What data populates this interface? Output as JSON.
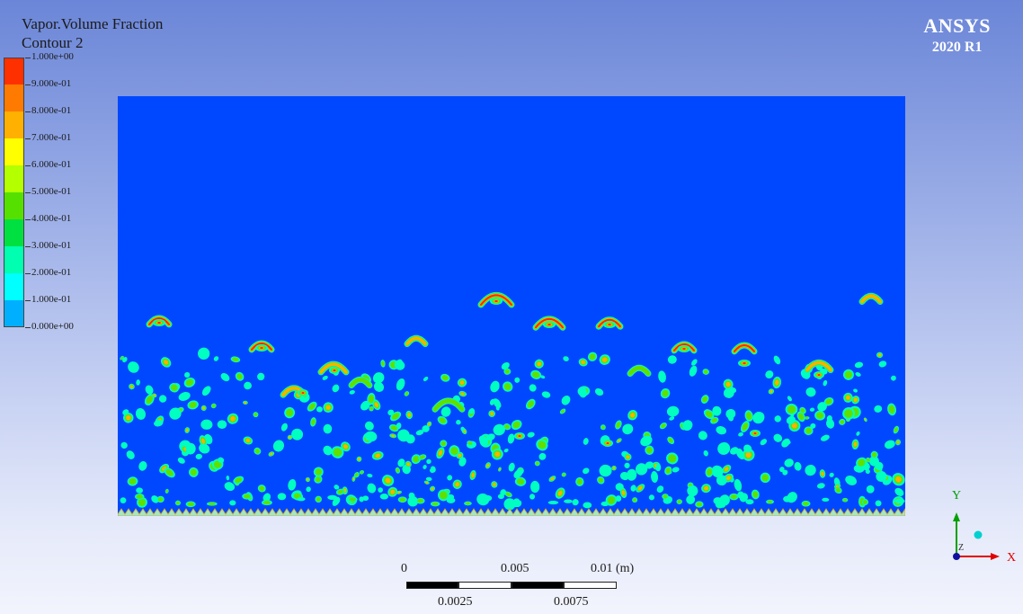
{
  "legend": {
    "title": "Vapor.Volume Fraction",
    "subtitle": "Contour 2",
    "labels": [
      "1.000e+00",
      "9.000e-01",
      "8.000e-01",
      "7.000e-01",
      "6.000e-01",
      "5.000e-01",
      "4.000e-01",
      "3.000e-01",
      "2.000e-01",
      "1.000e-01",
      "0.000e+00"
    ],
    "colors": [
      "#ff3000",
      "#ff7a00",
      "#ffb000",
      "#ffff00",
      "#b4ff00",
      "#55e000",
      "#00e040",
      "#00ffb0",
      "#00ffff",
      "#00b0ff",
      "#0048ff"
    ]
  },
  "brand": {
    "name": "ANSYS",
    "version": "2020 R1"
  },
  "scale_bar": {
    "top_labels": [
      "0",
      "0.005",
      "0.01 (m)"
    ],
    "bottom_labels": [
      "0.0025",
      "0.0075"
    ]
  },
  "axis_triad": {
    "y_label": "Y",
    "z_label": "Z",
    "x_label": "X"
  },
  "colors": {
    "domain_fill": "#0048ff",
    "bubble_rim": "#00ffc0",
    "bubble_mid": "#60e000",
    "bubble_core": "#ffb000",
    "bubble_hot": "#ff2800",
    "axis_y": "#00a000",
    "axis_x": "#e00000",
    "axis_z": "#00d0d0"
  }
}
